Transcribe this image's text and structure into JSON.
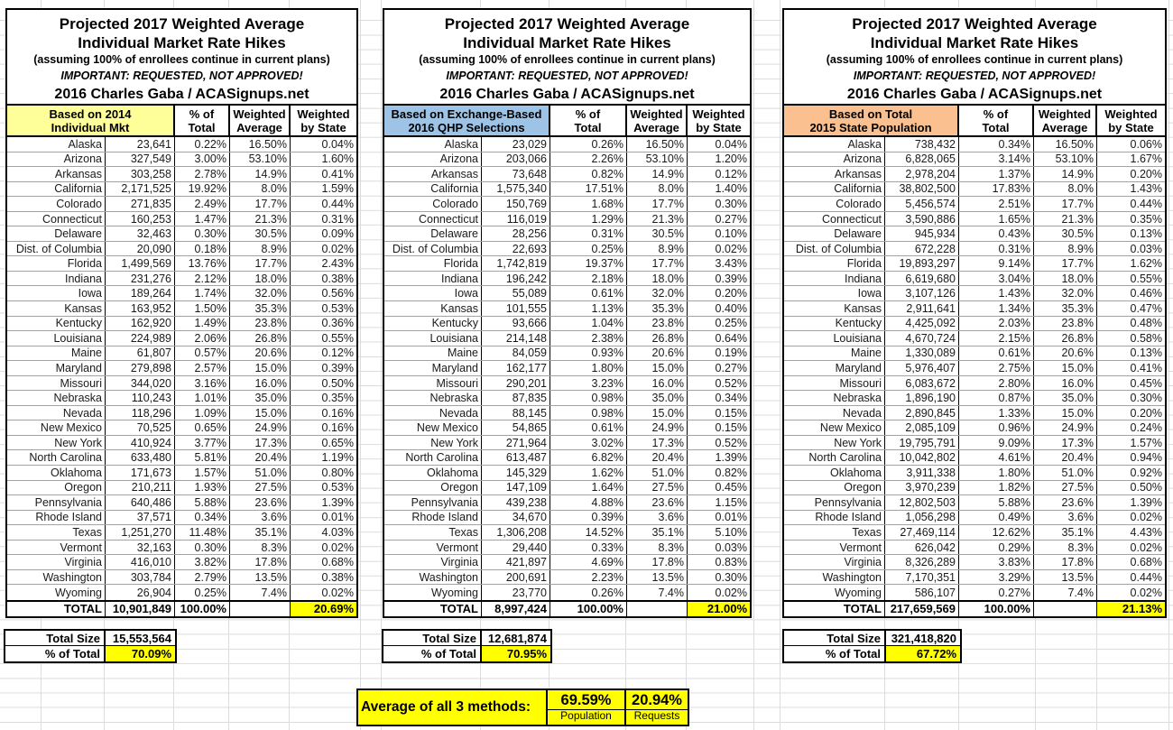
{
  "shared": {
    "title_line1": "Projected 2017 Weighted Average",
    "title_line2": "Individual Market Rate Hikes",
    "subtitle": "(assuming 100% of enrollees continue in current plans)",
    "warning": "IMPORTANT: REQUESTED, NOT APPROVED!",
    "credit": "2016 Charles Gaba / ACASignups.net",
    "columns": [
      [
        "% of",
        "Total"
      ],
      [
        "Weighted",
        "Average"
      ],
      [
        "Weighted",
        "by State"
      ]
    ],
    "footer_size_label": "Total Size",
    "footer_pct_label": "% of Total"
  },
  "colors": {
    "highlight": "#FFFF00",
    "header_yellow": "#FFFF99",
    "header_blue": "#9DC3E6",
    "header_orange": "#FAC090"
  },
  "tables": [
    {
      "header": {
        "line1": "Based on 2014",
        "line2": "Individual Mkt",
        "bg": "#FFFF99"
      },
      "rows": [
        [
          "Alaska",
          "23,641",
          "0.22%",
          "16.50%",
          "0.04%"
        ],
        [
          "Arizona",
          "327,549",
          "3.00%",
          "53.10%",
          "1.60%"
        ],
        [
          "Arkansas",
          "303,258",
          "2.78%",
          "14.9%",
          "0.41%"
        ],
        [
          "California",
          "2,171,525",
          "19.92%",
          "8.0%",
          "1.59%"
        ],
        [
          "Colorado",
          "271,835",
          "2.49%",
          "17.7%",
          "0.44%"
        ],
        [
          "Connecticut",
          "160,253",
          "1.47%",
          "21.3%",
          "0.31%"
        ],
        [
          "Delaware",
          "32,463",
          "0.30%",
          "30.5%",
          "0.09%"
        ],
        [
          "Dist. of Columbia",
          "20,090",
          "0.18%",
          "8.9%",
          "0.02%"
        ],
        [
          "Florida",
          "1,499,569",
          "13.76%",
          "17.7%",
          "2.43%"
        ],
        [
          "Indiana",
          "231,276",
          "2.12%",
          "18.0%",
          "0.38%"
        ],
        [
          "Iowa",
          "189,264",
          "1.74%",
          "32.0%",
          "0.56%"
        ],
        [
          "Kansas",
          "163,952",
          "1.50%",
          "35.3%",
          "0.53%"
        ],
        [
          "Kentucky",
          "162,920",
          "1.49%",
          "23.8%",
          "0.36%"
        ],
        [
          "Louisiana",
          "224,989",
          "2.06%",
          "26.8%",
          "0.55%"
        ],
        [
          "Maine",
          "61,807",
          "0.57%",
          "20.6%",
          "0.12%"
        ],
        [
          "Maryland",
          "279,898",
          "2.57%",
          "15.0%",
          "0.39%"
        ],
        [
          "Missouri",
          "344,020",
          "3.16%",
          "16.0%",
          "0.50%"
        ],
        [
          "Nebraska",
          "110,243",
          "1.01%",
          "35.0%",
          "0.35%"
        ],
        [
          "Nevada",
          "118,296",
          "1.09%",
          "15.0%",
          "0.16%"
        ],
        [
          "New Mexico",
          "70,525",
          "0.65%",
          "24.9%",
          "0.16%"
        ],
        [
          "New York",
          "410,924",
          "3.77%",
          "17.3%",
          "0.65%"
        ],
        [
          "North Carolina",
          "633,480",
          "5.81%",
          "20.4%",
          "1.19%"
        ],
        [
          "Oklahoma",
          "171,673",
          "1.57%",
          "51.0%",
          "0.80%"
        ],
        [
          "Oregon",
          "210,211",
          "1.93%",
          "27.5%",
          "0.53%"
        ],
        [
          "Pennsylvania",
          "640,486",
          "5.88%",
          "23.6%",
          "1.39%"
        ],
        [
          "Rhode Island",
          "37,571",
          "0.34%",
          "3.6%",
          "0.01%"
        ],
        [
          "Texas",
          "1,251,270",
          "11.48%",
          "35.1%",
          "4.03%"
        ],
        [
          "Vermont",
          "32,163",
          "0.30%",
          "8.3%",
          "0.02%"
        ],
        [
          "Virginia",
          "416,010",
          "3.82%",
          "17.8%",
          "0.68%"
        ],
        [
          "Washington",
          "303,784",
          "2.79%",
          "13.5%",
          "0.38%"
        ],
        [
          "Wyoming",
          "26,904",
          "0.25%",
          "7.4%",
          "0.02%"
        ]
      ],
      "total": {
        "label": "TOTAL",
        "value": "10,901,849",
        "pct": "100.00%",
        "wavg": "",
        "wstate": "20.69%"
      },
      "footer": {
        "size": "15,553,564",
        "pct": "70.09%"
      }
    },
    {
      "header": {
        "line1": "Based on Exchange-Based",
        "line2": "2016 QHP Selections",
        "bg": "#9DC3E6"
      },
      "rows": [
        [
          "Alaska",
          "23,029",
          "0.26%",
          "16.50%",
          "0.04%"
        ],
        [
          "Arizona",
          "203,066",
          "2.26%",
          "53.10%",
          "1.20%"
        ],
        [
          "Arkansas",
          "73,648",
          "0.82%",
          "14.9%",
          "0.12%"
        ],
        [
          "California",
          "1,575,340",
          "17.51%",
          "8.0%",
          "1.40%"
        ],
        [
          "Colorado",
          "150,769",
          "1.68%",
          "17.7%",
          "0.30%"
        ],
        [
          "Connecticut",
          "116,019",
          "1.29%",
          "21.3%",
          "0.27%"
        ],
        [
          "Delaware",
          "28,256",
          "0.31%",
          "30.5%",
          "0.10%"
        ],
        [
          "Dist. of Columbia",
          "22,693",
          "0.25%",
          "8.9%",
          "0.02%"
        ],
        [
          "Florida",
          "1,742,819",
          "19.37%",
          "17.7%",
          "3.43%"
        ],
        [
          "Indiana",
          "196,242",
          "2.18%",
          "18.0%",
          "0.39%"
        ],
        [
          "Iowa",
          "55,089",
          "0.61%",
          "32.0%",
          "0.20%"
        ],
        [
          "Kansas",
          "101,555",
          "1.13%",
          "35.3%",
          "0.40%"
        ],
        [
          "Kentucky",
          "93,666",
          "1.04%",
          "23.8%",
          "0.25%"
        ],
        [
          "Louisiana",
          "214,148",
          "2.38%",
          "26.8%",
          "0.64%"
        ],
        [
          "Maine",
          "84,059",
          "0.93%",
          "20.6%",
          "0.19%"
        ],
        [
          "Maryland",
          "162,177",
          "1.80%",
          "15.0%",
          "0.27%"
        ],
        [
          "Missouri",
          "290,201",
          "3.23%",
          "16.0%",
          "0.52%"
        ],
        [
          "Nebraska",
          "87,835",
          "0.98%",
          "35.0%",
          "0.34%"
        ],
        [
          "Nevada",
          "88,145",
          "0.98%",
          "15.0%",
          "0.15%"
        ],
        [
          "New Mexico",
          "54,865",
          "0.61%",
          "24.9%",
          "0.15%"
        ],
        [
          "New York",
          "271,964",
          "3.02%",
          "17.3%",
          "0.52%"
        ],
        [
          "North Carolina",
          "613,487",
          "6.82%",
          "20.4%",
          "1.39%"
        ],
        [
          "Oklahoma",
          "145,329",
          "1.62%",
          "51.0%",
          "0.82%"
        ],
        [
          "Oregon",
          "147,109",
          "1.64%",
          "27.5%",
          "0.45%"
        ],
        [
          "Pennsylvania",
          "439,238",
          "4.88%",
          "23.6%",
          "1.15%"
        ],
        [
          "Rhode Island",
          "34,670",
          "0.39%",
          "3.6%",
          "0.01%"
        ],
        [
          "Texas",
          "1,306,208",
          "14.52%",
          "35.1%",
          "5.10%"
        ],
        [
          "Vermont",
          "29,440",
          "0.33%",
          "8.3%",
          "0.03%"
        ],
        [
          "Virginia",
          "421,897",
          "4.69%",
          "17.8%",
          "0.83%"
        ],
        [
          "Washington",
          "200,691",
          "2.23%",
          "13.5%",
          "0.30%"
        ],
        [
          "Wyoming",
          "23,770",
          "0.26%",
          "7.4%",
          "0.02%"
        ]
      ],
      "total": {
        "label": "TOTAL",
        "value": "8,997,424",
        "pct": "100.00%",
        "wavg": "",
        "wstate": "21.00%"
      },
      "footer": {
        "size": "12,681,874",
        "pct": "70.95%"
      }
    },
    {
      "header": {
        "line1": "Based on Total",
        "line2": "2015 State Population",
        "bg": "#FAC090"
      },
      "rows": [
        [
          "Alaska",
          "738,432",
          "0.34%",
          "16.50%",
          "0.06%"
        ],
        [
          "Arizona",
          "6,828,065",
          "3.14%",
          "53.10%",
          "1.67%"
        ],
        [
          "Arkansas",
          "2,978,204",
          "1.37%",
          "14.9%",
          "0.20%"
        ],
        [
          "California",
          "38,802,500",
          "17.83%",
          "8.0%",
          "1.43%"
        ],
        [
          "Colorado",
          "5,456,574",
          "2.51%",
          "17.7%",
          "0.44%"
        ],
        [
          "Connecticut",
          "3,590,886",
          "1.65%",
          "21.3%",
          "0.35%"
        ],
        [
          "Delaware",
          "945,934",
          "0.43%",
          "30.5%",
          "0.13%"
        ],
        [
          "Dist. of Columbia",
          "672,228",
          "0.31%",
          "8.9%",
          "0.03%"
        ],
        [
          "Florida",
          "19,893,297",
          "9.14%",
          "17.7%",
          "1.62%"
        ],
        [
          "Indiana",
          "6,619,680",
          "3.04%",
          "18.0%",
          "0.55%"
        ],
        [
          "Iowa",
          "3,107,126",
          "1.43%",
          "32.0%",
          "0.46%"
        ],
        [
          "Kansas",
          "2,911,641",
          "1.34%",
          "35.3%",
          "0.47%"
        ],
        [
          "Kentucky",
          "4,425,092",
          "2.03%",
          "23.8%",
          "0.48%"
        ],
        [
          "Louisiana",
          "4,670,724",
          "2.15%",
          "26.8%",
          "0.58%"
        ],
        [
          "Maine",
          "1,330,089",
          "0.61%",
          "20.6%",
          "0.13%"
        ],
        [
          "Maryland",
          "5,976,407",
          "2.75%",
          "15.0%",
          "0.41%"
        ],
        [
          "Missouri",
          "6,083,672",
          "2.80%",
          "16.0%",
          "0.45%"
        ],
        [
          "Nebraska",
          "1,896,190",
          "0.87%",
          "35.0%",
          "0.30%"
        ],
        [
          "Nevada",
          "2,890,845",
          "1.33%",
          "15.0%",
          "0.20%"
        ],
        [
          "New Mexico",
          "2,085,109",
          "0.96%",
          "24.9%",
          "0.24%"
        ],
        [
          "New York",
          "19,795,791",
          "9.09%",
          "17.3%",
          "1.57%"
        ],
        [
          "North Carolina",
          "10,042,802",
          "4.61%",
          "20.4%",
          "0.94%"
        ],
        [
          "Oklahoma",
          "3,911,338",
          "1.80%",
          "51.0%",
          "0.92%"
        ],
        [
          "Oregon",
          "3,970,239",
          "1.82%",
          "27.5%",
          "0.50%"
        ],
        [
          "Pennsylvania",
          "12,802,503",
          "5.88%",
          "23.6%",
          "1.39%"
        ],
        [
          "Rhode Island",
          "1,056,298",
          "0.49%",
          "3.6%",
          "0.02%"
        ],
        [
          "Texas",
          "27,469,114",
          "12.62%",
          "35.1%",
          "4.43%"
        ],
        [
          "Vermont",
          "626,042",
          "0.29%",
          "8.3%",
          "0.02%"
        ],
        [
          "Virginia",
          "8,326,289",
          "3.83%",
          "17.8%",
          "0.68%"
        ],
        [
          "Washington",
          "7,170,351",
          "3.29%",
          "13.5%",
          "0.44%"
        ],
        [
          "Wyoming",
          "586,107",
          "0.27%",
          "7.4%",
          "0.02%"
        ]
      ],
      "total": {
        "label": "TOTAL",
        "value": "217,659,569",
        "pct": "100.00%",
        "wavg": "",
        "wstate": "21.13%"
      },
      "footer": {
        "size": "321,418,820",
        "pct": "67.72%"
      }
    }
  ],
  "average": {
    "label": "Average of all 3 methods:",
    "value1": "69.59%",
    "sub1": "Population",
    "value2": "20.94%",
    "sub2": "Requests"
  }
}
